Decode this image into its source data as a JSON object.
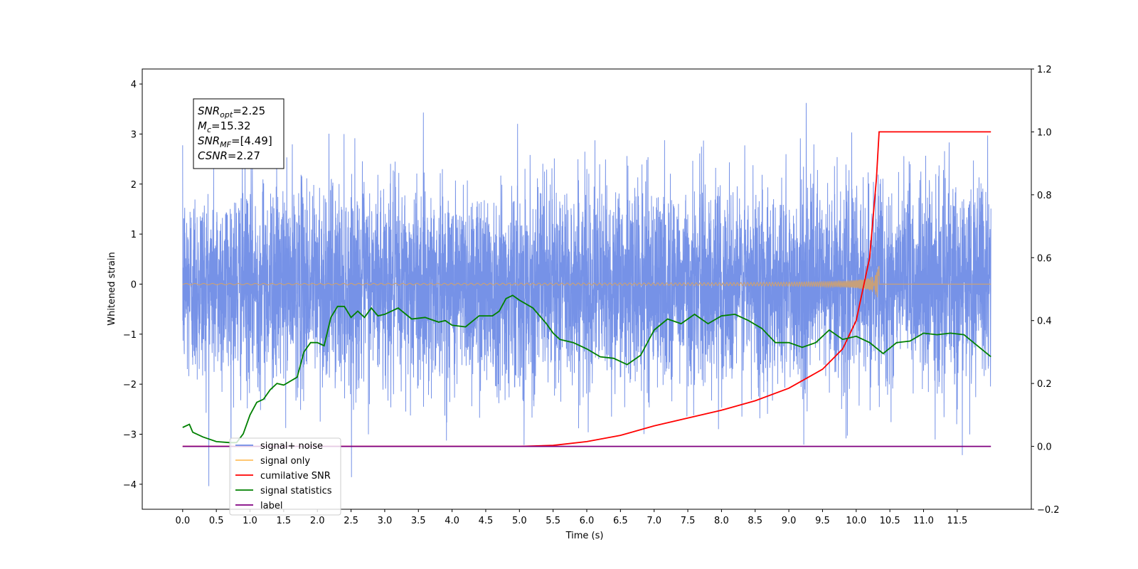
{
  "chart_data": {
    "type": "line",
    "xlabel": "Time (s)",
    "ylabel_left": "Whitened strain",
    "xlim": [
      -0.6,
      12.6
    ],
    "ylim_left": [
      -4.5,
      4.3
    ],
    "ylim_right": [
      -0.2,
      1.2
    ],
    "x_ticks": [
      "0.0",
      "0.5",
      "1.0",
      "1.5",
      "2.0",
      "2.5",
      "3.0",
      "3.5",
      "4.0",
      "4.5",
      "5.0",
      "5.5",
      "6.0",
      "6.5",
      "7.0",
      "7.5",
      "8.0",
      "8.5",
      "9.0",
      "9.5",
      "10.0",
      "10.5",
      "11.0",
      "11.5"
    ],
    "y_ticks_left": [
      "4",
      "3",
      "2",
      "1",
      "0",
      "−1",
      "−2",
      "−3",
      "−4"
    ],
    "y_ticks_right": [
      "1.2",
      "1.0",
      "0.8",
      "0.6",
      "0.4",
      "0.2",
      "0.0",
      "−0.2"
    ],
    "grid": false,
    "legend_location": "lower-left",
    "annotation": {
      "lines": [
        {
          "label": "SNR",
          "sub": "opt",
          "value": "=2.25"
        },
        {
          "label": "M",
          "sub": "c",
          "value": "=15.32"
        },
        {
          "label": "SNR",
          "sub": "MF",
          "value": "=[4.49]"
        },
        {
          "label": "CSNR",
          "sub": "",
          "value": "=2.27"
        }
      ]
    },
    "series": [
      {
        "name": "signal+ noise",
        "axis": "left",
        "color": "#6f8ce6",
        "x_range": [
          0.0,
          12.0
        ],
        "noise_sigma": 1.0,
        "noise_range": [
          -4.1,
          3.9
        ]
      },
      {
        "name": "signal only",
        "axis": "left",
        "color": "#c8a07a",
        "chirp_end": 10.34,
        "chirp_peak_amplitude": 0.45
      },
      {
        "name": "cumilative SNR",
        "axis": "right",
        "color": "#ff0000",
        "points": [
          [
            0.0,
            0.0
          ],
          [
            5.0,
            0.0
          ],
          [
            5.5,
            0.003
          ],
          [
            6.0,
            0.015
          ],
          [
            6.5,
            0.035
          ],
          [
            7.0,
            0.065
          ],
          [
            7.5,
            0.09
          ],
          [
            8.0,
            0.115
          ],
          [
            8.5,
            0.145
          ],
          [
            9.0,
            0.185
          ],
          [
            9.5,
            0.245
          ],
          [
            9.8,
            0.31
          ],
          [
            10.0,
            0.4
          ],
          [
            10.2,
            0.6
          ],
          [
            10.3,
            0.85
          ],
          [
            10.34,
            1.0
          ],
          [
            12.0,
            1.0
          ]
        ]
      },
      {
        "name": "signal statistics",
        "axis": "right",
        "color": "#008000",
        "points": [
          [
            0.0,
            0.06
          ],
          [
            0.1,
            0.07
          ],
          [
            0.15,
            0.045
          ],
          [
            0.3,
            0.03
          ],
          [
            0.5,
            0.015
          ],
          [
            0.7,
            0.012
          ],
          [
            0.8,
            0.012
          ],
          [
            0.9,
            0.04
          ],
          [
            1.0,
            0.1
          ],
          [
            1.1,
            0.14
          ],
          [
            1.2,
            0.15
          ],
          [
            1.3,
            0.18
          ],
          [
            1.4,
            0.2
          ],
          [
            1.5,
            0.195
          ],
          [
            1.7,
            0.22
          ],
          [
            1.8,
            0.3
          ],
          [
            1.9,
            0.33
          ],
          [
            2.0,
            0.33
          ],
          [
            2.1,
            0.32
          ],
          [
            2.2,
            0.41
          ],
          [
            2.3,
            0.445
          ],
          [
            2.4,
            0.445
          ],
          [
            2.5,
            0.41
          ],
          [
            2.6,
            0.43
          ],
          [
            2.7,
            0.41
          ],
          [
            2.8,
            0.44
          ],
          [
            2.9,
            0.415
          ],
          [
            3.0,
            0.42
          ],
          [
            3.2,
            0.44
          ],
          [
            3.4,
            0.405
          ],
          [
            3.6,
            0.41
          ],
          [
            3.8,
            0.395
          ],
          [
            3.9,
            0.4
          ],
          [
            4.0,
            0.385
          ],
          [
            4.2,
            0.38
          ],
          [
            4.4,
            0.415
          ],
          [
            4.6,
            0.415
          ],
          [
            4.7,
            0.43
          ],
          [
            4.8,
            0.47
          ],
          [
            4.9,
            0.48
          ],
          [
            5.0,
            0.465
          ],
          [
            5.2,
            0.44
          ],
          [
            5.4,
            0.39
          ],
          [
            5.5,
            0.36
          ],
          [
            5.6,
            0.34
          ],
          [
            5.8,
            0.33
          ],
          [
            6.0,
            0.31
          ],
          [
            6.2,
            0.285
          ],
          [
            6.4,
            0.28
          ],
          [
            6.5,
            0.27
          ],
          [
            6.6,
            0.26
          ],
          [
            6.8,
            0.29
          ],
          [
            7.0,
            0.37
          ],
          [
            7.2,
            0.405
          ],
          [
            7.4,
            0.39
          ],
          [
            7.6,
            0.42
          ],
          [
            7.8,
            0.39
          ],
          [
            8.0,
            0.415
          ],
          [
            8.2,
            0.42
          ],
          [
            8.4,
            0.4
          ],
          [
            8.6,
            0.375
          ],
          [
            8.8,
            0.33
          ],
          [
            9.0,
            0.33
          ],
          [
            9.2,
            0.315
          ],
          [
            9.4,
            0.33
          ],
          [
            9.6,
            0.37
          ],
          [
            9.8,
            0.34
          ],
          [
            10.0,
            0.35
          ],
          [
            10.2,
            0.33
          ],
          [
            10.4,
            0.295
          ],
          [
            10.6,
            0.33
          ],
          [
            10.8,
            0.335
          ],
          [
            11.0,
            0.36
          ],
          [
            11.2,
            0.355
          ],
          [
            11.4,
            0.36
          ],
          [
            11.6,
            0.355
          ],
          [
            11.8,
            0.32
          ],
          [
            12.0,
            0.285
          ]
        ]
      },
      {
        "name": "label",
        "axis": "right",
        "color": "#800080",
        "points": [
          [
            0.0,
            0.0
          ],
          [
            12.0,
            0.0
          ]
        ]
      }
    ],
    "legend": [
      {
        "label": "signal+ noise",
        "color": "#6f8ce6"
      },
      {
        "label": "signal only",
        "color": "#ffbf5f"
      },
      {
        "label": "cumilative SNR",
        "color": "#ff0000"
      },
      {
        "label": "signal statistics",
        "color": "#008000"
      },
      {
        "label": "label",
        "color": "#800080"
      }
    ]
  }
}
